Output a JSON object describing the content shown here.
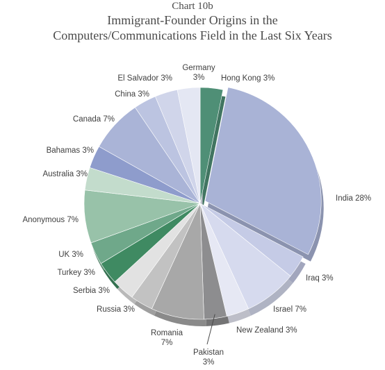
{
  "chart_number": "Chart 10b",
  "title_line1": "Immigrant-Founder Origins in the",
  "title_line2": "Computers/Communications Field in the Last Six Years",
  "chart_data": {
    "type": "pie",
    "title": "Immigrant-Founder Origins in the Computers/Communications Field in the Last Six Years",
    "start_angle_deg": 0,
    "slices": [
      {
        "name": "Hong Kong",
        "value": 3,
        "label": "Hong Kong 3%",
        "color": "#4f8f76"
      },
      {
        "name": "India",
        "value": 28,
        "label": "India 28%",
        "color": "#a9b3d6"
      },
      {
        "name": "Iraq",
        "value": 3,
        "label": "Iraq 3%",
        "color": "#c5cbe6"
      },
      {
        "name": "Israel",
        "value": 7,
        "label": "Israel 7%",
        "color": "#d6daee"
      },
      {
        "name": "New Zealand",
        "value": 3,
        "label": "New Zealand 3%",
        "color": "#e6e8f4"
      },
      {
        "name": "Pakistan",
        "value": 3,
        "label": "Pakistan 3%",
        "color": "#8d8d8f"
      },
      {
        "name": "Romania",
        "value": 7,
        "label": "Romania 7%",
        "color": "#a8a8a8"
      },
      {
        "name": "Russia",
        "value": 3,
        "label": "Russia 3%",
        "color": "#c2c2c2"
      },
      {
        "name": "Serbia",
        "value": 3,
        "label": "Serbia 3%",
        "color": "#e2e2e2"
      },
      {
        "name": "Turkey",
        "value": 3,
        "label": "Turkey 3%",
        "color": "#3f8a62"
      },
      {
        "name": "UK",
        "value": 3,
        "label": "UK 3%",
        "color": "#6fa88a"
      },
      {
        "name": "Anonymous",
        "value": 7,
        "label": "Anonymous 7%",
        "color": "#98c2a9"
      },
      {
        "name": "Australia",
        "value": 3,
        "label": "Australia 3%",
        "color": "#c3dccc"
      },
      {
        "name": "Bahamas",
        "value": 3,
        "label": "Bahamas 3%",
        "color": "#8e9ccc"
      },
      {
        "name": "Canada",
        "value": 7,
        "label": "Canada 7%",
        "color": "#aab4d7"
      },
      {
        "name": "China",
        "value": 3,
        "label": "China 3%",
        "color": "#bcc4e1"
      },
      {
        "name": "El Salvador",
        "value": 3,
        "label": "El Salvador 3%",
        "color": "#d0d5ea"
      },
      {
        "name": "Germany",
        "value": 3,
        "label": "Germany 3%",
        "color": "#e4e7f3"
      }
    ],
    "exploded_slice": "India"
  }
}
